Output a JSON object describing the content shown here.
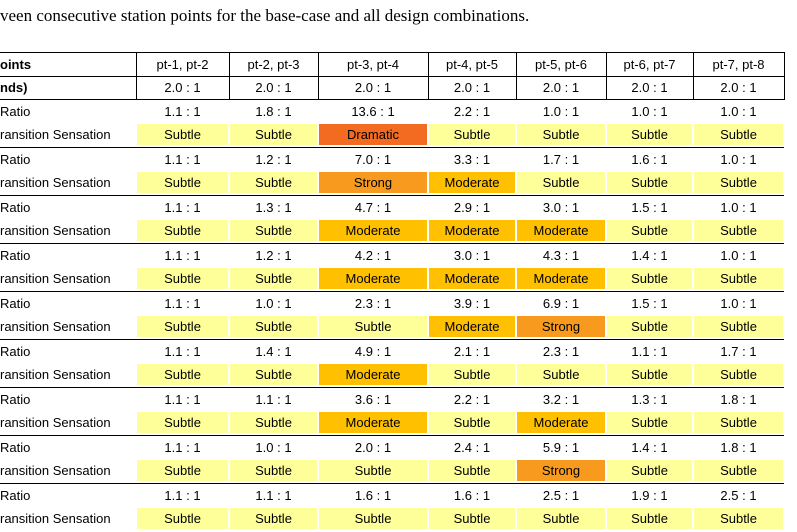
{
  "caption": "veen consecutive station points for the base-case and all design combinations.",
  "table": {
    "header": [
      "oints",
      "pt-1, pt-2",
      "pt-2, pt-3",
      "pt-3, pt-4",
      "pt-4, pt-5",
      "pt-5, pt-6",
      "pt-6, pt-7",
      "pt-7, pt-8"
    ],
    "second_row": [
      "nds)",
      "2.0 : 1",
      "2.0 : 1",
      "2.0 : 1",
      "2.0 : 1",
      "2.0 : 1",
      "2.0 : 1",
      "2.0 : 1"
    ],
    "cell_colors": {
      "Subtle": "#ffff99",
      "Moderate": "#ffc000",
      "Strong": "#f79a1e",
      "Dramatic": "#f26b21"
    },
    "groups": [
      {
        "ratio_label": "Ratio",
        "ratios": [
          "1.1 : 1",
          "1.8 : 1",
          "13.6 : 1",
          "2.2 : 1",
          "1.0 : 1",
          "1.0 : 1",
          "1.0 : 1"
        ],
        "sensation_label": "ransition Sensation",
        "sensations": [
          "Subtle",
          "Subtle",
          "Dramatic",
          "Subtle",
          "Subtle",
          "Subtle",
          "Subtle"
        ]
      },
      {
        "ratio_label": "Ratio",
        "ratios": [
          "1.1 : 1",
          "1.2 : 1",
          "7.0 : 1",
          "3.3 : 1",
          "1.7 : 1",
          "1.6 : 1",
          "1.0 : 1"
        ],
        "sensation_label": "ransition Sensation",
        "sensations": [
          "Subtle",
          "Subtle",
          "Strong",
          "Moderate",
          "Subtle",
          "Subtle",
          "Subtle"
        ]
      },
      {
        "ratio_label": "Ratio",
        "ratios": [
          "1.1 : 1",
          "1.3 : 1",
          "4.7 : 1",
          "2.9 : 1",
          "3.0 : 1",
          "1.5 : 1",
          "1.0 : 1"
        ],
        "sensation_label": "ransition Sensation",
        "sensations": [
          "Subtle",
          "Subtle",
          "Moderate",
          "Moderate",
          "Moderate",
          "Subtle",
          "Subtle"
        ]
      },
      {
        "ratio_label": "Ratio",
        "ratios": [
          "1.1 : 1",
          "1.2 : 1",
          "4.2 : 1",
          "3.0 : 1",
          "4.3 : 1",
          "1.4 : 1",
          "1.0 : 1"
        ],
        "sensation_label": "ransition Sensation",
        "sensations": [
          "Subtle",
          "Subtle",
          "Moderate",
          "Moderate",
          "Moderate",
          "Subtle",
          "Subtle"
        ]
      },
      {
        "ratio_label": "Ratio",
        "ratios": [
          "1.1 : 1",
          "1.0 : 1",
          "2.3 : 1",
          "3.9 : 1",
          "6.9 : 1",
          "1.5 : 1",
          "1.0 : 1"
        ],
        "sensation_label": "ransition Sensation",
        "sensations": [
          "Subtle",
          "Subtle",
          "Subtle",
          "Moderate",
          "Strong",
          "Subtle",
          "Subtle"
        ]
      },
      {
        "ratio_label": "Ratio",
        "ratios": [
          "1.1 : 1",
          "1.4 : 1",
          "4.9 : 1",
          "2.1 : 1",
          "2.3 : 1",
          "1.1 : 1",
          "1.7 : 1"
        ],
        "sensation_label": "ransition Sensation",
        "sensations": [
          "Subtle",
          "Subtle",
          "Moderate",
          "Subtle",
          "Subtle",
          "Subtle",
          "Subtle"
        ]
      },
      {
        "ratio_label": "Ratio",
        "ratios": [
          "1.1 : 1",
          "1.1 : 1",
          "3.6 : 1",
          "2.2 : 1",
          "3.2 : 1",
          "1.3 : 1",
          "1.8 : 1"
        ],
        "sensation_label": "ransition Sensation",
        "sensations": [
          "Subtle",
          "Subtle",
          "Moderate",
          "Subtle",
          "Moderate",
          "Subtle",
          "Subtle"
        ]
      },
      {
        "ratio_label": "Ratio",
        "ratios": [
          "1.1 : 1",
          "1.0 : 1",
          "2.0 : 1",
          "2.4 : 1",
          "5.9 : 1",
          "1.4 : 1",
          "1.8 : 1"
        ],
        "sensation_label": "ransition Sensation",
        "sensations": [
          "Subtle",
          "Subtle",
          "Subtle",
          "Subtle",
          "Strong",
          "Subtle",
          "Subtle"
        ]
      },
      {
        "ratio_label": "Ratio",
        "ratios": [
          "1.1 : 1",
          "1.1 : 1",
          "1.6 : 1",
          "1.6 : 1",
          "2.5 : 1",
          "1.9 : 1",
          "2.5 : 1"
        ],
        "sensation_label": "ransition Sensation",
        "sensations": [
          "Subtle",
          "Subtle",
          "Subtle",
          "Subtle",
          "Subtle",
          "Subtle",
          "Subtle"
        ]
      }
    ]
  }
}
